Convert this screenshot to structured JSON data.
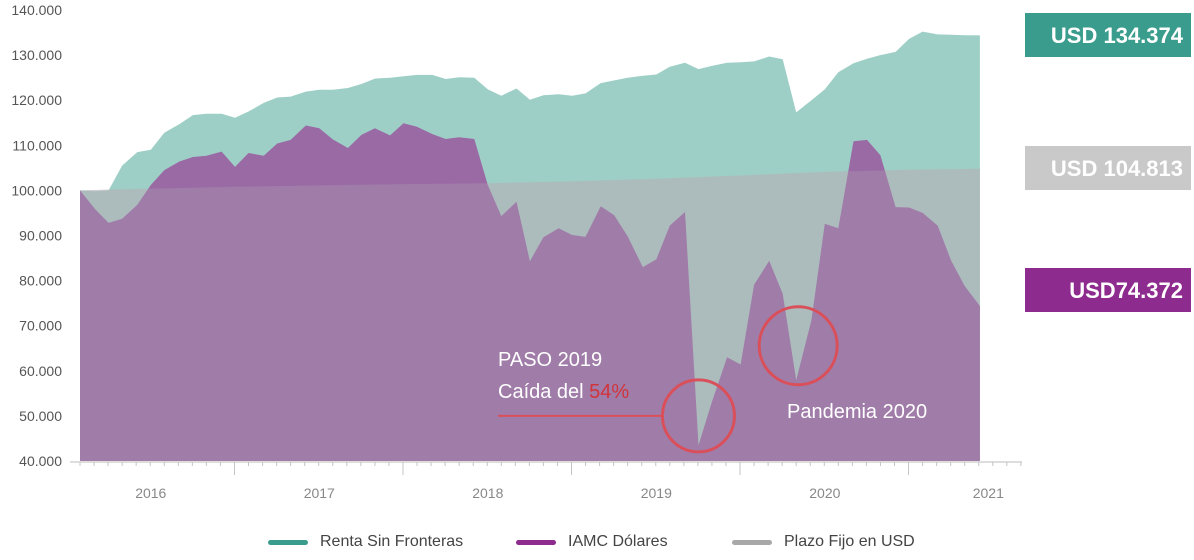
{
  "chart_data": {
    "type": "area",
    "ylim": [
      40000,
      140000
    ],
    "y_ticks": [
      "40.000",
      "50.000",
      "60.000",
      "70.000",
      "80.000",
      "90.000",
      "100.000",
      "110.000",
      "120.000",
      "130.000",
      "140.000"
    ],
    "y_tick_values": [
      40000,
      50000,
      60000,
      70000,
      80000,
      90000,
      100000,
      110000,
      120000,
      130000,
      140000
    ],
    "x_range": [
      2015.58,
      2021.17
    ],
    "x_labels": [
      {
        "label": "2016",
        "x": 2016.0
      },
      {
        "label": "2017",
        "x": 2017.0
      },
      {
        "label": "2018",
        "x": 2018.0
      },
      {
        "label": "2019",
        "x": 2019.0
      },
      {
        "label": "2020",
        "x": 2020.0
      },
      {
        "label": "2021",
        "x": 2020.97
      }
    ],
    "series": [
      {
        "name": "Renta Sin Fronteras",
        "color": "#9ecfc6",
        "line_color": "#3a9c8c",
        "end_label": "USD 134.374",
        "end_label_color": "#3a9c8c",
        "points": [
          [
            2015.58,
            100000
          ],
          [
            2015.67,
            99800
          ],
          [
            2015.75,
            100000
          ],
          [
            2015.83,
            105500
          ],
          [
            2015.92,
            108500
          ],
          [
            2016.0,
            109000
          ],
          [
            2016.08,
            112800
          ],
          [
            2016.17,
            114700
          ],
          [
            2016.25,
            116700
          ],
          [
            2016.33,
            117000
          ],
          [
            2016.42,
            117000
          ],
          [
            2016.5,
            116100
          ],
          [
            2016.58,
            117500
          ],
          [
            2016.67,
            119400
          ],
          [
            2016.75,
            120600
          ],
          [
            2016.83,
            120800
          ],
          [
            2016.92,
            121900
          ],
          [
            2017.0,
            122300
          ],
          [
            2017.08,
            122300
          ],
          [
            2017.17,
            122700
          ],
          [
            2017.25,
            123600
          ],
          [
            2017.33,
            124800
          ],
          [
            2017.42,
            125000
          ],
          [
            2017.5,
            125300
          ],
          [
            2017.58,
            125600
          ],
          [
            2017.67,
            125600
          ],
          [
            2017.75,
            124700
          ],
          [
            2017.83,
            125100
          ],
          [
            2017.92,
            125000
          ],
          [
            2018.0,
            122400
          ],
          [
            2018.08,
            121000
          ],
          [
            2018.17,
            122600
          ],
          [
            2018.25,
            120100
          ],
          [
            2018.33,
            121100
          ],
          [
            2018.42,
            121300
          ],
          [
            2018.5,
            121000
          ],
          [
            2018.58,
            121500
          ],
          [
            2018.67,
            123800
          ],
          [
            2018.75,
            124400
          ],
          [
            2018.83,
            125000
          ],
          [
            2018.92,
            125400
          ],
          [
            2019.0,
            125700
          ],
          [
            2019.08,
            127400
          ],
          [
            2019.17,
            128300
          ],
          [
            2019.25,
            126900
          ],
          [
            2019.33,
            127600
          ],
          [
            2019.42,
            128300
          ],
          [
            2019.5,
            128400
          ],
          [
            2019.58,
            128600
          ],
          [
            2019.67,
            129700
          ],
          [
            2019.75,
            129100
          ],
          [
            2019.83,
            117300
          ],
          [
            2019.92,
            120000
          ],
          [
            2020.0,
            122400
          ],
          [
            2020.08,
            126200
          ],
          [
            2020.17,
            128200
          ],
          [
            2020.25,
            129200
          ],
          [
            2020.33,
            130000
          ],
          [
            2020.42,
            130700
          ],
          [
            2020.5,
            133600
          ],
          [
            2020.58,
            135200
          ],
          [
            2020.67,
            134600
          ],
          [
            2020.75,
            134500
          ],
          [
            2020.83,
            134400
          ],
          [
            2020.92,
            134374
          ]
        ]
      },
      {
        "name": "IAMC Dólares",
        "color": "#9a6aa5",
        "line_color": "#8e2b8e",
        "end_label": "USD74.372",
        "end_label_color": "#8e2b8e",
        "points": [
          [
            2015.58,
            100000
          ],
          [
            2015.67,
            95800
          ],
          [
            2015.75,
            92800
          ],
          [
            2015.83,
            93700
          ],
          [
            2015.92,
            96800
          ],
          [
            2016.0,
            101200
          ],
          [
            2016.08,
            104500
          ],
          [
            2016.17,
            106400
          ],
          [
            2016.25,
            107400
          ],
          [
            2016.33,
            107700
          ],
          [
            2016.42,
            108600
          ],
          [
            2016.5,
            105200
          ],
          [
            2016.58,
            108300
          ],
          [
            2016.67,
            107700
          ],
          [
            2016.75,
            110400
          ],
          [
            2016.83,
            111200
          ],
          [
            2016.92,
            114400
          ],
          [
            2017.0,
            113800
          ],
          [
            2017.08,
            111300
          ],
          [
            2017.17,
            109400
          ],
          [
            2017.25,
            112300
          ],
          [
            2017.33,
            113800
          ],
          [
            2017.42,
            112200
          ],
          [
            2017.5,
            114900
          ],
          [
            2017.58,
            114100
          ],
          [
            2017.67,
            112500
          ],
          [
            2017.75,
            111400
          ],
          [
            2017.83,
            111800
          ],
          [
            2017.92,
            111400
          ],
          [
            2018.0,
            101200
          ],
          [
            2018.08,
            94300
          ],
          [
            2018.17,
            97500
          ],
          [
            2018.25,
            84300
          ],
          [
            2018.33,
            89600
          ],
          [
            2018.42,
            91600
          ],
          [
            2018.5,
            90100
          ],
          [
            2018.58,
            89700
          ],
          [
            2018.67,
            96500
          ],
          [
            2018.75,
            94500
          ],
          [
            2018.83,
            89800
          ],
          [
            2018.92,
            83000
          ],
          [
            2019.0,
            84700
          ],
          [
            2019.08,
            92200
          ],
          [
            2019.17,
            95200
          ],
          [
            2019.25,
            43500
          ],
          [
            2019.33,
            53100
          ],
          [
            2019.42,
            63000
          ],
          [
            2019.5,
            61400
          ],
          [
            2019.58,
            79100
          ],
          [
            2019.67,
            84400
          ],
          [
            2019.75,
            77100
          ],
          [
            2019.83,
            57900
          ],
          [
            2019.92,
            71200
          ],
          [
            2020.0,
            92600
          ],
          [
            2020.08,
            91600
          ],
          [
            2020.17,
            110900
          ],
          [
            2020.25,
            111200
          ],
          [
            2020.33,
            107800
          ],
          [
            2020.42,
            96300
          ],
          [
            2020.5,
            96200
          ],
          [
            2020.58,
            95000
          ],
          [
            2020.67,
            92200
          ],
          [
            2020.75,
            84400
          ],
          [
            2020.83,
            78800
          ],
          [
            2020.92,
            74372
          ]
        ]
      },
      {
        "name": "Plazo Fijo en USD",
        "color": "#b4b2b8",
        "line_color": "#a0a0a4",
        "end_label": "USD 104.813",
        "end_label_color": "#c9c9c9",
        "points": [
          [
            2015.58,
            100000
          ],
          [
            2016.0,
            100400
          ],
          [
            2016.5,
            100800
          ],
          [
            2017.0,
            101100
          ],
          [
            2017.5,
            101400
          ],
          [
            2018.0,
            101600
          ],
          [
            2018.5,
            102000
          ],
          [
            2019.0,
            102600
          ],
          [
            2019.5,
            103300
          ],
          [
            2020.0,
            104100
          ],
          [
            2020.5,
            104600
          ],
          [
            2020.92,
            104813
          ]
        ]
      }
    ],
    "annotations": [
      {
        "id": "paso",
        "line1": "PASO 2019",
        "line2_prefix": "Caída del ",
        "line2_value": "54%",
        "circle_x": 2019.25,
        "circle_y": 50000
      },
      {
        "id": "pandemia",
        "text": "Pandemia 2020",
        "circle_x": 2019.83,
        "circle_y": 64000
      }
    ]
  },
  "legend": [
    {
      "label": "Renta Sin Fronteras",
      "color": "#3a9c8c"
    },
    {
      "label": "IAMC Dólares",
      "color": "#8e2b8e"
    },
    {
      "label": "Plazo Fijo en USD",
      "color": "#a8a8a8"
    }
  ]
}
